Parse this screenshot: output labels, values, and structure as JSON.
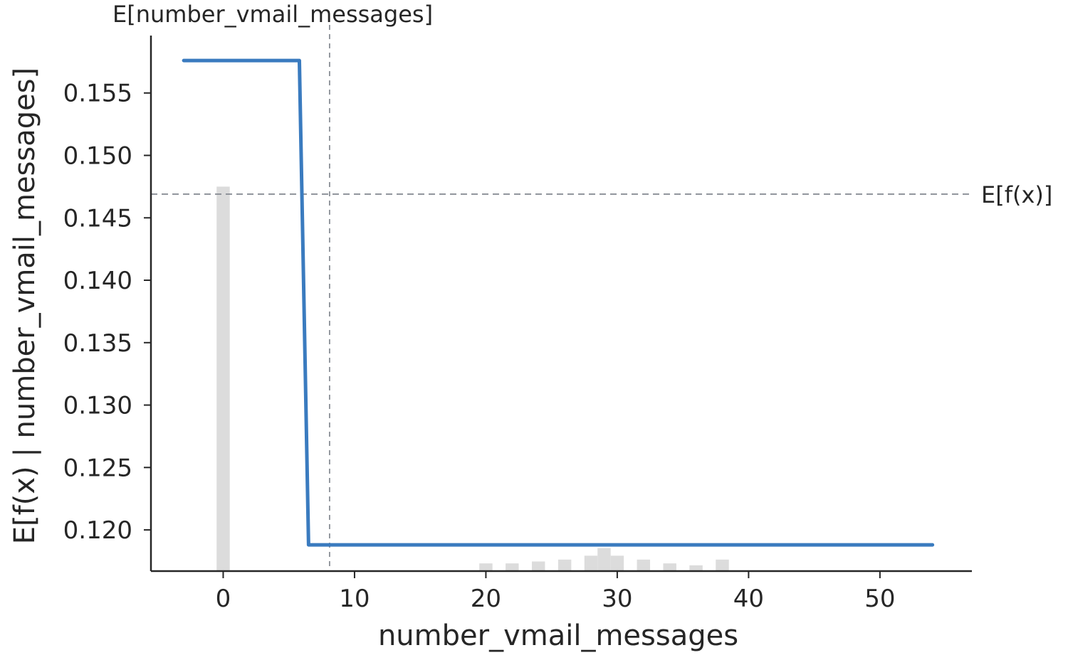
{
  "chart_data": {
    "type": "line",
    "xlabel": "number_vmail_messages",
    "ylabel": "E[f(x) | number_vmail_messages]",
    "xlim": [
      -5.5,
      57
    ],
    "ylim": [
      0.1167,
      0.1596
    ],
    "xticks": [
      0,
      10,
      20,
      30,
      40,
      50
    ],
    "yticks": [
      0.12,
      0.125,
      0.13,
      0.135,
      0.14,
      0.145,
      0.15,
      0.155
    ],
    "ytick_labels": [
      "0.120",
      "0.125",
      "0.130",
      "0.135",
      "0.140",
      "0.145",
      "0.150",
      "0.155"
    ],
    "series": [
      {
        "color": "#3a7bbf",
        "x": [
          -3,
          5.8,
          6.5,
          54
        ],
        "y": [
          0.1576,
          0.1576,
          0.1188,
          0.1188
        ]
      }
    ],
    "histogram": {
      "color": "#dcdcdc",
      "x": [
        0,
        20,
        22,
        24,
        26,
        28,
        29,
        30,
        32,
        34,
        36,
        38
      ],
      "heights": [
        1.0,
        0.02,
        0.02,
        0.025,
        0.03,
        0.04,
        0.06,
        0.04,
        0.03,
        0.02,
        0.015,
        0.03
      ],
      "bar_width": 1.0
    },
    "reference_lines": {
      "expected_value": {
        "y": 0.1469,
        "label": "E[f(x)]"
      },
      "feature_mean": {
        "x": 8.1,
        "label": "E[number_vmail_messages]"
      }
    },
    "grid": false,
    "legend": "none"
  }
}
